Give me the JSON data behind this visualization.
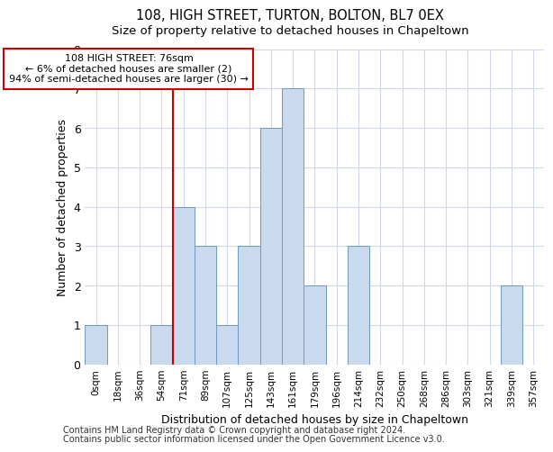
{
  "title1": "108, HIGH STREET, TURTON, BOLTON, BL7 0EX",
  "title2": "Size of property relative to detached houses in Chapeltown",
  "xlabel": "Distribution of detached houses by size in Chapeltown",
  "ylabel": "Number of detached properties",
  "bins": [
    "0sqm",
    "18sqm",
    "36sqm",
    "54sqm",
    "71sqm",
    "89sqm",
    "107sqm",
    "125sqm",
    "143sqm",
    "161sqm",
    "179sqm",
    "196sqm",
    "214sqm",
    "232sqm",
    "250sqm",
    "268sqm",
    "286sqm",
    "303sqm",
    "321sqm",
    "339sqm",
    "357sqm"
  ],
  "bar_values": [
    1,
    0,
    0,
    1,
    4,
    3,
    1,
    3,
    6,
    7,
    2,
    0,
    3,
    0,
    0,
    0,
    0,
    0,
    0,
    2,
    0
  ],
  "bar_color": "#c9d9ee",
  "bar_edge_color": "#7099c0",
  "subject_bin_index": 4,
  "subject_label": "108 HIGH STREET: 76sqm",
  "annotation_line1": "← 6% of detached houses are smaller (2)",
  "annotation_line2": "94% of semi-detached houses are larger (30) →",
  "annotation_box_color": "#ffffff",
  "annotation_box_edge": "#cc0000",
  "subject_line_color": "#cc0000",
  "ylim": [
    0,
    8
  ],
  "yticks": [
    0,
    1,
    2,
    3,
    4,
    5,
    6,
    7,
    8
  ],
  "footer1": "Contains HM Land Registry data © Crown copyright and database right 2024.",
  "footer2": "Contains public sector information licensed under the Open Government Licence v3.0.",
  "background_color": "#ffffff",
  "grid_color": "#d0d8e8"
}
